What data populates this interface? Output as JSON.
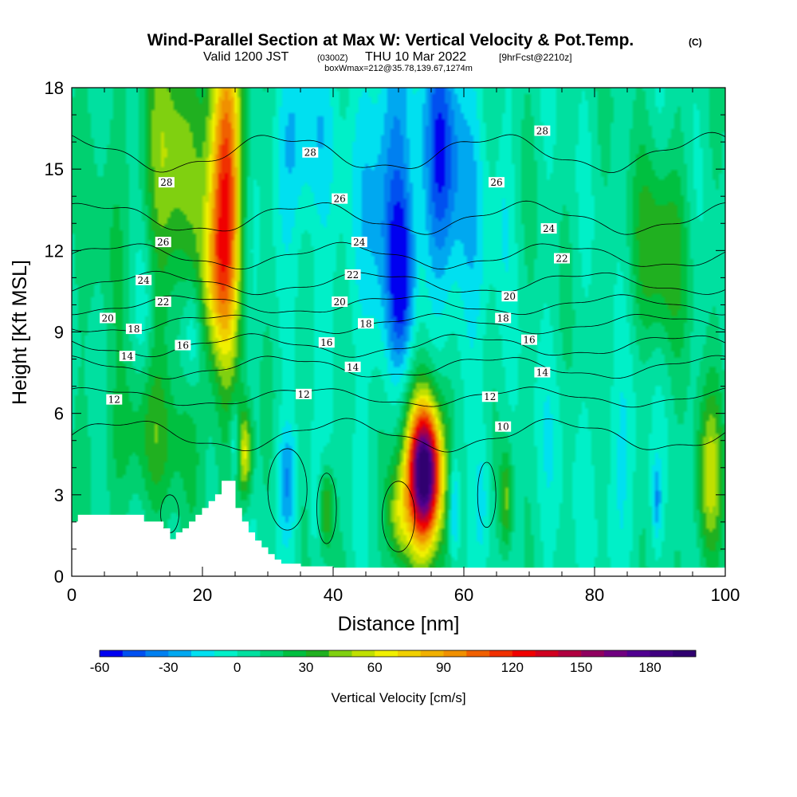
{
  "chart_data": {
    "type": "heatmap",
    "title": "Wind-Parallel Section at Max W: Vertical Velocity & Pot.Temp.",
    "title_mark": "(C)",
    "subtitle": {
      "valid": "Valid 1200 JST",
      "utc": "(0300Z)",
      "date": "THU 10 Mar 2022",
      "fcst": "[9hrFcst@2210z]"
    },
    "box_info": "boxWmax=212@35.78,139.67,1274m",
    "xlabel": "Distance [nm]",
    "ylabel": "Height [Kft MSL]",
    "xlim": [
      0,
      100
    ],
    "ylim": [
      0,
      18
    ],
    "xticks": [
      "0",
      "20",
      "40",
      "60",
      "80",
      "100"
    ],
    "yticks": [
      "0",
      "3",
      "6",
      "9",
      "12",
      "15",
      "18"
    ],
    "colorbar": {
      "label": "Vertical Velocity [cm/s]",
      "min": -60,
      "max": 200,
      "step": 10,
      "ticks": [
        "-60",
        "-30",
        "0",
        "30",
        "60",
        "90",
        "120",
        "150",
        "180"
      ],
      "colors": [
        "#0000f0",
        "#0050f0",
        "#0080f0",
        "#00a8f0",
        "#00e0f0",
        "#00f0c8",
        "#00e0a0",
        "#00d070",
        "#00c040",
        "#20b020",
        "#80d010",
        "#c0e000",
        "#f0f000",
        "#f0d000",
        "#f0b000",
        "#f09000",
        "#f06000",
        "#f03000",
        "#f00000",
        "#d00020",
        "#b00040",
        "#900060",
        "#700080",
        "#500090",
        "#400080",
        "#300070"
      ]
    },
    "terrain": [
      [
        0,
        2
      ],
      [
        1,
        2
      ],
      [
        1,
        2.25
      ],
      [
        11,
        2.25
      ],
      [
        11,
        2.0
      ],
      [
        14,
        2.0
      ],
      [
        14,
        1.75
      ],
      [
        15,
        1.75
      ],
      [
        15,
        1.35
      ],
      [
        16,
        1.35
      ],
      [
        16,
        1.6
      ],
      [
        17,
        1.6
      ],
      [
        17,
        1.75
      ],
      [
        18,
        1.75
      ],
      [
        18,
        2.0
      ],
      [
        19,
        2.0
      ],
      [
        19,
        2.25
      ],
      [
        20,
        2.25
      ],
      [
        20,
        2.5
      ],
      [
        21,
        2.5
      ],
      [
        21,
        2.75
      ],
      [
        22,
        2.75
      ],
      [
        22,
        3.0
      ],
      [
        23,
        3.0
      ],
      [
        23,
        3.5
      ],
      [
        25,
        3.5
      ],
      [
        25,
        2.5
      ],
      [
        26,
        2.5
      ],
      [
        26,
        2.0
      ],
      [
        27,
        2.0
      ],
      [
        27,
        1.6
      ],
      [
        28,
        1.6
      ],
      [
        28,
        1.3
      ],
      [
        29,
        1.3
      ],
      [
        29,
        1.05
      ],
      [
        30,
        1.05
      ],
      [
        30,
        0.8
      ],
      [
        31,
        0.8
      ],
      [
        31,
        0.6
      ],
      [
        32,
        0.6
      ],
      [
        32,
        0.45
      ],
      [
        35,
        0.45
      ],
      [
        35,
        0.35
      ],
      [
        40,
        0.35
      ],
      [
        40,
        0.3
      ],
      [
        100,
        0.3
      ]
    ],
    "w_cells": [
      {
        "x": 15,
        "z": 15,
        "sx": 3,
        "sz": 4,
        "w": 45
      },
      {
        "x": 23.5,
        "z": 15,
        "sx": 1.8,
        "sz": 4,
        "w": 70
      },
      {
        "x": 23.5,
        "z": 13.5,
        "sx": 2.2,
        "sz": 5.5,
        "w": 40
      },
      {
        "x": 22,
        "z": 11,
        "sx": 1.8,
        "sz": 2,
        "w": 35
      },
      {
        "x": 11,
        "z": 10,
        "sx": 1.2,
        "sz": 2,
        "w": -20
      },
      {
        "x": 18.5,
        "z": 9,
        "sx": 1,
        "sz": 1.5,
        "w": -25
      },
      {
        "x": 27,
        "z": 11,
        "sx": 1.5,
        "sz": 3,
        "w": -10
      },
      {
        "x": 35,
        "z": 16,
        "sx": 3,
        "sz": 2.5,
        "w": -30
      },
      {
        "x": 49,
        "z": 14,
        "sx": 3,
        "sz": 5,
        "w": -40
      },
      {
        "x": 50.5,
        "z": 11,
        "sx": 1.3,
        "sz": 2,
        "w": -35
      },
      {
        "x": 56.5,
        "z": 15.5,
        "sx": 2,
        "sz": 3,
        "w": -45
      },
      {
        "x": 60,
        "z": 12.5,
        "sx": 3,
        "sz": 5,
        "w": -20
      },
      {
        "x": 41,
        "z": 12,
        "sx": 2.5,
        "sz": 3,
        "w": -10
      },
      {
        "x": 54,
        "z": 3.8,
        "sx": 1.6,
        "sz": 1.6,
        "w": 150
      },
      {
        "x": 54,
        "z": 4,
        "sx": 2.8,
        "sz": 2.5,
        "w": 60
      },
      {
        "x": 50,
        "z": 2.2,
        "sx": 1.3,
        "sz": 1.3,
        "w": 40
      },
      {
        "x": 26.5,
        "z": 4.5,
        "sx": 0.8,
        "sz": 1.2,
        "w": 60
      },
      {
        "x": 25,
        "z": 5,
        "sx": 0.6,
        "sz": 1,
        "w": -30
      },
      {
        "x": 33,
        "z": 3.5,
        "sx": 1.2,
        "sz": 1.5,
        "w": -35
      },
      {
        "x": 39,
        "z": 2.5,
        "sx": 0.8,
        "sz": 1.1,
        "w": 40
      },
      {
        "x": 37,
        "z": 3,
        "sx": 0.6,
        "sz": 1.5,
        "w": -20
      },
      {
        "x": 58.5,
        "z": 2.5,
        "sx": 0.6,
        "sz": 1.5,
        "w": -40
      },
      {
        "x": 66.5,
        "z": 2.8,
        "sx": 0.7,
        "sz": 1.4,
        "w": 40
      },
      {
        "x": 63,
        "z": 3,
        "sx": 0.8,
        "sz": 2,
        "w": -15
      },
      {
        "x": 84,
        "z": 4,
        "sx": 2.5,
        "sz": 3,
        "w": -15
      },
      {
        "x": 89.5,
        "z": 2.8,
        "sx": 0.5,
        "sz": 1,
        "w": -30
      },
      {
        "x": 97.5,
        "z": 3.5,
        "sx": 1.5,
        "sz": 2.2,
        "w": 50
      },
      {
        "x": 90,
        "z": 12,
        "sx": 3,
        "sz": 2.5,
        "w": 35
      },
      {
        "x": 12,
        "z": 5,
        "sx": 5,
        "sz": 2,
        "w": 25
      },
      {
        "x": 5,
        "z": 13,
        "sx": 3,
        "sz": 4,
        "w": 10
      },
      {
        "x": 66,
        "z": 14,
        "sx": 1,
        "sz": 2.5,
        "w": -10
      },
      {
        "x": 73,
        "z": 4,
        "sx": 3,
        "sz": 3,
        "w": -8
      }
    ],
    "theta_contours": [
      {
        "value": 10,
        "z": 5.2,
        "amp": 0.5,
        "label": "10",
        "lx": 66,
        "lz": 5.5
      },
      {
        "value": 12,
        "z": 6.6,
        "amp": 0.3,
        "label": "12",
        "labels": [
          [
            6.5,
            6.5
          ],
          [
            35.5,
            6.7
          ],
          [
            64,
            6.6
          ]
        ]
      },
      {
        "value": 14,
        "z": 7.7,
        "amp": 0.35,
        "label": "14",
        "labels": [
          [
            8.5,
            8.1
          ],
          [
            43,
            7.7
          ],
          [
            72,
            7.5
          ]
        ]
      },
      {
        "value": 16,
        "z": 8.5,
        "amp": 0.35,
        "label": "16",
        "labels": [
          [
            17,
            8.5
          ],
          [
            39,
            8.6
          ],
          [
            70,
            8.7
          ]
        ]
      },
      {
        "value": 18,
        "z": 9.3,
        "amp": 0.3,
        "label": "18",
        "labels": [
          [
            9.5,
            9.1
          ],
          [
            45,
            9.3
          ],
          [
            66,
            9.5
          ]
        ]
      },
      {
        "value": 20,
        "z": 10.0,
        "amp": 0.3,
        "label": "20",
        "labels": [
          [
            5.5,
            9.5
          ],
          [
            41,
            10.1
          ],
          [
            67,
            10.3
          ]
        ]
      },
      {
        "value": 22,
        "z": 10.8,
        "amp": 0.35,
        "label": "22",
        "labels": [
          [
            14,
            10.1
          ],
          [
            43,
            11.1
          ],
          [
            75,
            11.7
          ]
        ]
      },
      {
        "value": 24,
        "z": 11.8,
        "amp": 0.4,
        "label": "24",
        "labels": [
          [
            11,
            10.9
          ],
          [
            44,
            12.3
          ],
          [
            73,
            12.8
          ]
        ]
      },
      {
        "value": 26,
        "z": 13.2,
        "amp": 0.5,
        "label": "26",
        "labels": [
          [
            14,
            12.3
          ],
          [
            41,
            13.9
          ],
          [
            65,
            14.5
          ]
        ]
      },
      {
        "value": 28,
        "z": 15.6,
        "amp": 0.6,
        "label": "28",
        "labels": [
          [
            14.5,
            14.5
          ],
          [
            36.5,
            15.6
          ],
          [
            72,
            16.4
          ]
        ]
      }
    ]
  }
}
